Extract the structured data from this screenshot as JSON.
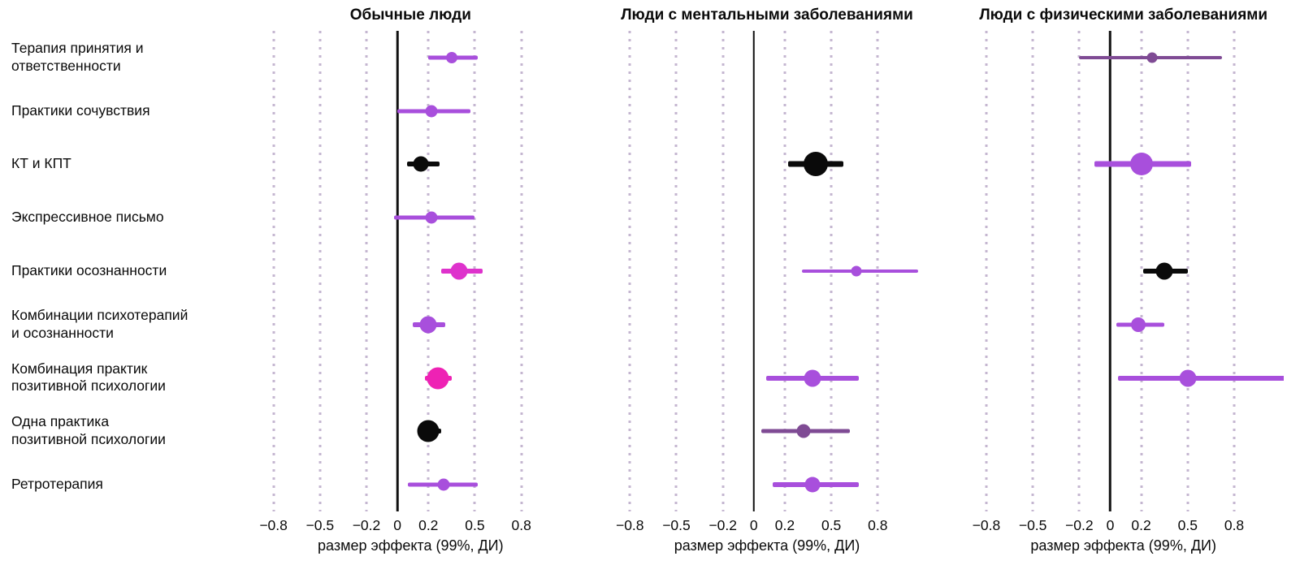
{
  "chart_data": {
    "type": "scatter",
    "subtype": "forest-plot",
    "xlabel": "размер эффекта (99%, ДИ)",
    "xlim": [
      -0.95,
      1.12
    ],
    "x_ticks": [
      -0.8,
      -0.5,
      -0.2,
      0,
      0.2,
      0.5,
      0.8
    ],
    "x_tick_labels": [
      "−0.8",
      "−0.5",
      "−0.2",
      "0",
      "0.2",
      "0.5",
      "0.8"
    ],
    "grid": true,
    "style": {
      "grid_color": "#c4b6d0",
      "zero_line_color": "#111111",
      "purple": "#a84fdc",
      "dark_purple": "#7f4b94",
      "magenta": "#de32cc",
      "pink": "#ee22b4",
      "black": "#0a0a0a"
    },
    "categories": [
      "Терапия принятия и\nответственности",
      "Практики сочувствия",
      "КТ и КПТ",
      "Экспрессивное письмо",
      "Практики осознанности",
      "Комбинации психотерапий\nи осознанности",
      "Комбинация практик\nпозитивной психологии",
      "Одна практика\nпозитивной психологии",
      "Ретротерапия"
    ],
    "panels": [
      {
        "title": "Обычные люди",
        "points": [
          {
            "row": 0,
            "category": "Терапия принятия и ответственности",
            "est": 0.35,
            "lo": 0.2,
            "hi": 0.52,
            "color": "#a84fdc",
            "size": 14,
            "lw": 5
          },
          {
            "row": 1,
            "category": "Практики сочувствия",
            "est": 0.22,
            "lo": 0.0,
            "hi": 0.47,
            "color": "#a84fdc",
            "size": 15,
            "lw": 5
          },
          {
            "row": 2,
            "category": "КТ и КПТ",
            "est": 0.15,
            "lo": 0.06,
            "hi": 0.27,
            "color": "#0a0a0a",
            "size": 19,
            "lw": 6
          },
          {
            "row": 3,
            "category": "Экспрессивное письмо",
            "est": 0.22,
            "lo": -0.02,
            "hi": 0.5,
            "color": "#a84fdc",
            "size": 15,
            "lw": 5
          },
          {
            "row": 4,
            "category": "Практики осознанности",
            "est": 0.4,
            "lo": 0.28,
            "hi": 0.55,
            "color": "#de32cc",
            "size": 21,
            "lw": 6
          },
          {
            "row": 5,
            "category": "Комбинации психотерапий и осознанности",
            "est": 0.2,
            "lo": 0.1,
            "hi": 0.31,
            "color": "#a84fdc",
            "size": 21,
            "lw": 6
          },
          {
            "row": 6,
            "category": "Комбинация практик позитивной психологии",
            "est": 0.26,
            "lo": 0.18,
            "hi": 0.35,
            "color": "#ee22b4",
            "size": 27,
            "lw": 6
          },
          {
            "row": 7,
            "category": "Одна практика позитивной психологии",
            "est": 0.2,
            "lo": 0.13,
            "hi": 0.28,
            "color": "#0a0a0a",
            "size": 27,
            "lw": 6
          },
          {
            "row": 8,
            "category": "Ретротерапия",
            "est": 0.3,
            "lo": 0.07,
            "hi": 0.52,
            "color": "#a84fdc",
            "size": 15,
            "lw": 5
          }
        ]
      },
      {
        "title": "Люди с ментальными заболеваниями",
        "points": [
          {
            "row": 2,
            "category": "КТ и КПТ",
            "est": 0.4,
            "lo": 0.22,
            "hi": 0.58,
            "color": "#0a0a0a",
            "size": 30,
            "lw": 7
          },
          {
            "row": 4,
            "category": "Практики осознанности",
            "est": 0.66,
            "lo": 0.31,
            "hi": 1.06,
            "color": "#a84fdc",
            "size": 13,
            "lw": 4
          },
          {
            "row": 6,
            "category": "Комбинация практик позитивной психологии",
            "est": 0.38,
            "lo": 0.08,
            "hi": 0.68,
            "color": "#a84fdc",
            "size": 21,
            "lw": 6
          },
          {
            "row": 7,
            "category": "Одна практика позитивной психологии",
            "est": 0.32,
            "lo": 0.05,
            "hi": 0.62,
            "color": "#7f4b94",
            "size": 17,
            "lw": 5
          },
          {
            "row": 8,
            "category": "Ретротерапия",
            "est": 0.38,
            "lo": 0.12,
            "hi": 0.68,
            "color": "#a84fdc",
            "size": 19,
            "lw": 6
          }
        ]
      },
      {
        "title": "Люди с физическими заболеваниями",
        "points": [
          {
            "row": 0,
            "category": "Терапия принятия и ответственности",
            "est": 0.27,
            "lo": -0.2,
            "hi": 0.72,
            "color": "#7f4b94",
            "size": 13,
            "lw": 4
          },
          {
            "row": 2,
            "category": "КТ и КПТ",
            "est": 0.2,
            "lo": -0.1,
            "hi": 0.52,
            "color": "#a84fdc",
            "size": 28,
            "lw": 7
          },
          {
            "row": 4,
            "category": "Практики осознанности",
            "est": 0.35,
            "lo": 0.21,
            "hi": 0.5,
            "color": "#0a0a0a",
            "size": 21,
            "lw": 6
          },
          {
            "row": 5,
            "category": "Комбинации психотерапий и осознанности",
            "est": 0.18,
            "lo": 0.04,
            "hi": 0.35,
            "color": "#a84fdc",
            "size": 18,
            "lw": 5
          },
          {
            "row": 6,
            "category": "Комбинация практик позитивной психологии",
            "est": 0.5,
            "lo": 0.05,
            "hi": 1.18,
            "color": "#a84fdc",
            "size": 21,
            "lw": 6
          }
        ]
      }
    ]
  }
}
